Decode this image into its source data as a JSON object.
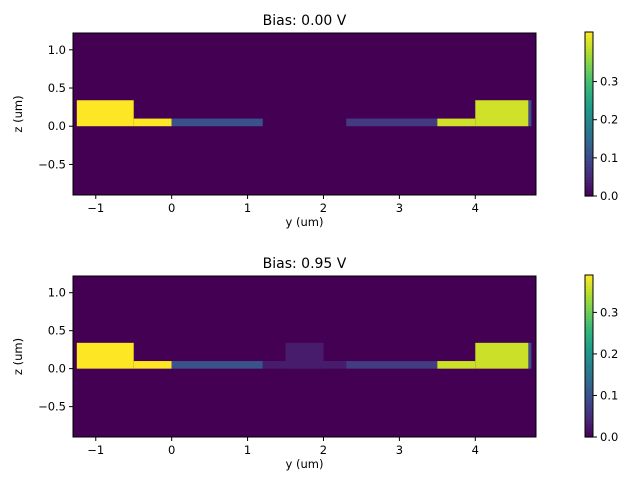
{
  "chart_data": [
    {
      "type": "heatmap",
      "title": "Bias: 0.00 V",
      "xlabel": "y (um)",
      "ylabel": "z (um)",
      "xlim": [
        -1.3,
        4.8
      ],
      "ylim": [
        -0.9,
        1.22
      ],
      "xticks": [
        "-1",
        "0",
        "1",
        "2",
        "3",
        "4"
      ],
      "yticks": [
        "1.0",
        "0.5",
        "0.0",
        "-0.5"
      ],
      "colorbar": {
        "vmin": 0.0,
        "vmax": 0.43,
        "ticks": [
          "0.0",
          "0.1",
          "0.2",
          "0.3"
        ],
        "colormap": "viridis"
      },
      "background_value": 0.0,
      "cells": [
        {
          "y": [
            -1.25,
            -0.5
          ],
          "z": [
            0,
            0.34
          ],
          "value": 0.43
        },
        {
          "y": [
            -0.5,
            0.0
          ],
          "z": [
            0,
            0.1
          ],
          "value": 0.43
        },
        {
          "y": [
            0.0,
            1.2
          ],
          "z": [
            0,
            0.1
          ],
          "value": 0.11
        },
        {
          "y": [
            2.3,
            3.5
          ],
          "z": [
            0,
            0.1
          ],
          "value": 0.075
        },
        {
          "y": [
            3.5,
            4.0
          ],
          "z": [
            0,
            0.1
          ],
          "value": 0.4
        },
        {
          "y": [
            4.0,
            4.7
          ],
          "z": [
            0,
            0.34
          ],
          "value": 0.4
        },
        {
          "y": [
            4.7,
            4.74
          ],
          "z": [
            0,
            0.34
          ],
          "value": 0.1
        }
      ]
    },
    {
      "type": "heatmap",
      "title": "Bias: 0.95 V",
      "xlabel": "y (um)",
      "ylabel": "z (um)",
      "xlim": [
        -1.3,
        4.8
      ],
      "ylim": [
        -0.9,
        1.22
      ],
      "xticks": [
        "-1",
        "0",
        "1",
        "2",
        "3",
        "4"
      ],
      "yticks": [
        "1.0",
        "0.5",
        "0.0",
        "-0.5"
      ],
      "colorbar": {
        "vmin": 0.0,
        "vmax": 0.39,
        "ticks": [
          "0.0",
          "0.1",
          "0.2",
          "0.3"
        ],
        "colormap": "viridis"
      },
      "background_value": 0.0,
      "cells": [
        {
          "y": [
            -1.25,
            -0.5
          ],
          "z": [
            0,
            0.34
          ],
          "value": 0.39
        },
        {
          "y": [
            -0.5,
            0.0
          ],
          "z": [
            0,
            0.1
          ],
          "value": 0.39
        },
        {
          "y": [
            0.0,
            1.2
          ],
          "z": [
            0,
            0.1
          ],
          "value": 0.1
        },
        {
          "y": [
            1.2,
            2.3
          ],
          "z": [
            0,
            0.1
          ],
          "value": 0.03
        },
        {
          "y": [
            1.5,
            2.0
          ],
          "z": [
            0,
            0.34
          ],
          "value": 0.03
        },
        {
          "y": [
            2.3,
            3.5
          ],
          "z": [
            0,
            0.1
          ],
          "value": 0.07
        },
        {
          "y": [
            3.5,
            4.0
          ],
          "z": [
            0,
            0.1
          ],
          "value": 0.36
        },
        {
          "y": [
            4.0,
            4.7
          ],
          "z": [
            0,
            0.34
          ],
          "value": 0.36
        },
        {
          "y": [
            4.7,
            4.74
          ],
          "z": [
            0,
            0.34
          ],
          "value": 0.09
        }
      ]
    }
  ]
}
